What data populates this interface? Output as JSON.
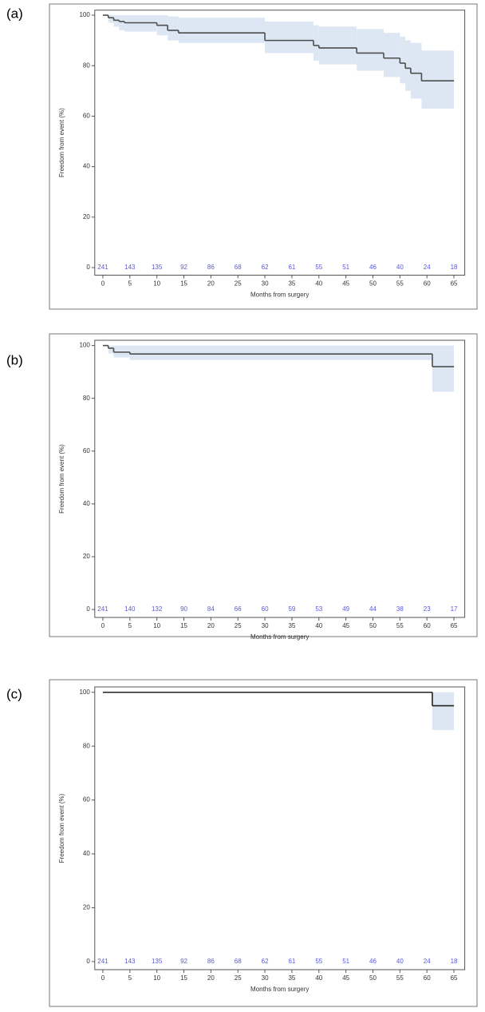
{
  "chart_data": [
    {
      "type": "line",
      "panel_label": "(a)",
      "x_label": "Months from surgery",
      "y_label": "Freedom from event (%)",
      "x": [
        0,
        1,
        2,
        3,
        4,
        10,
        12,
        14,
        30,
        39,
        40,
        47,
        52,
        55,
        56,
        57,
        59,
        65
      ],
      "values": [
        100,
        99,
        98,
        97.5,
        97,
        96,
        94,
        93,
        90,
        88,
        87,
        85,
        83,
        81,
        79,
        77,
        74,
        74
      ],
      "ci_upper": [
        100,
        100,
        100,
        100,
        100,
        100,
        99.5,
        99,
        97.5,
        96,
        95.5,
        94.5,
        93,
        91.5,
        90,
        89,
        86,
        86
      ],
      "ci_lower": [
        100,
        97,
        95.5,
        94,
        93.5,
        92,
        90,
        89,
        85,
        82,
        80.5,
        78,
        75.5,
        73,
        70,
        67,
        63,
        63
      ],
      "at_risk": [
        241,
        143,
        135,
        92,
        86,
        68,
        62,
        61,
        55,
        51,
        46,
        40,
        24,
        18
      ],
      "color": "#4d4d4d",
      "ci_color": "#dce7f3",
      "at_risk_color": "#5a5ad8",
      "xlim": [
        -1.5,
        67
      ],
      "ylim": [
        -3,
        102
      ],
      "xticks": [
        0,
        5,
        10,
        15,
        20,
        25,
        30,
        35,
        40,
        45,
        50,
        55,
        60,
        65
      ],
      "yticks": [
        0,
        20,
        40,
        60,
        80,
        100
      ]
    },
    {
      "type": "line",
      "panel_label": "(b)",
      "x_label": "Months from surgery",
      "y_label": "Freedom from event (%)",
      "x": [
        0,
        1,
        2,
        5,
        61,
        65
      ],
      "values": [
        100,
        99,
        97.5,
        96.8,
        92,
        92
      ],
      "ci_upper": [
        100,
        100,
        100,
        100,
        100,
        100
      ],
      "ci_lower": [
        100,
        97,
        95.5,
        94.5,
        82.5,
        82.5
      ],
      "at_risk": [
        241,
        140,
        132,
        90,
        84,
        66,
        60,
        59,
        53,
        49,
        44,
        38,
        23,
        17
      ],
      "color": "#4d4d4d",
      "ci_color": "#dce7f3",
      "at_risk_color": "#5a5ad8",
      "xlim": [
        -1.5,
        67
      ],
      "ylim": [
        -3,
        102
      ],
      "xticks": [
        0,
        5,
        10,
        15,
        20,
        25,
        30,
        35,
        40,
        45,
        50,
        55,
        60,
        65
      ],
      "yticks": [
        0,
        20,
        40,
        60,
        80,
        100
      ]
    },
    {
      "type": "line",
      "panel_label": "(c)",
      "x_label": "Months from surgery",
      "y_label": "Freedom from event (%)",
      "x": [
        0,
        61,
        65
      ],
      "values": [
        100,
        95,
        95
      ],
      "ci_upper": [
        100,
        100,
        100
      ],
      "ci_lower": [
        100,
        86,
        86
      ],
      "at_risk": [
        241,
        143,
        135,
        92,
        86,
        68,
        62,
        61,
        55,
        51,
        46,
        40,
        24,
        18
      ],
      "color": "#222222",
      "ci_color": "#dce7f3",
      "at_risk_color": "#5a5ad8",
      "xlim": [
        -1.5,
        67
      ],
      "ylim": [
        -3,
        102
      ],
      "xticks": [
        0,
        5,
        10,
        15,
        20,
        25,
        30,
        35,
        40,
        45,
        50,
        55,
        60,
        65
      ],
      "yticks": [
        0,
        20,
        40,
        60,
        80,
        100
      ]
    }
  ]
}
